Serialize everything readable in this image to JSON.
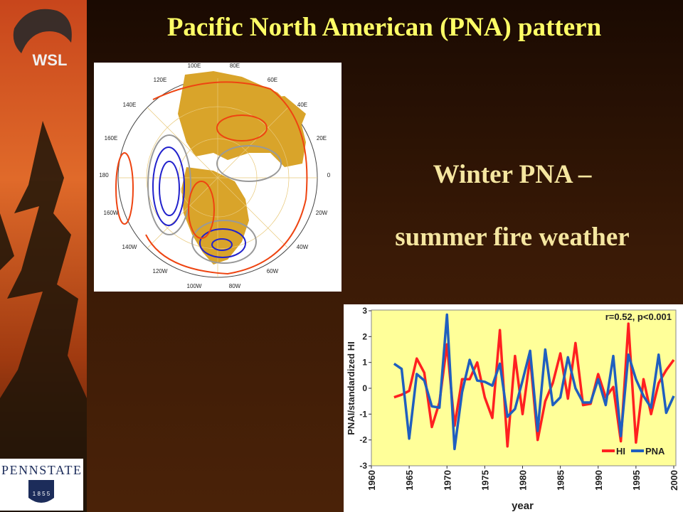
{
  "slide": {
    "title": "Pacific North American (PNA) pattern",
    "lines": [
      "Winter PNA –",
      "summer fire weather"
    ],
    "logo_top": "WSL",
    "logo_bottom": "PENNSTATE",
    "logo_year": "1 8 5 5"
  },
  "map": {
    "labels": [
      "100E",
      "80E",
      "120E",
      "60E",
      "140E",
      "40E",
      "160E",
      "20E",
      "180",
      "0",
      "160W",
      "20W",
      "140W",
      "40W",
      "120W",
      "60W",
      "100W",
      "80W"
    ]
  },
  "chart_data": {
    "type": "line",
    "annotation": "r=0.52, p<0.001",
    "xlabel": "year",
    "ylabel": "PNAI/standardized HI",
    "x": [
      1963,
      1964,
      1965,
      1966,
      1967,
      1968,
      1969,
      1970,
      1971,
      1972,
      1973,
      1974,
      1975,
      1976,
      1977,
      1978,
      1979,
      1980,
      1981,
      1982,
      1983,
      1984,
      1985,
      1986,
      1987,
      1988,
      1989,
      1990,
      1991,
      1992,
      1993,
      1994,
      1995,
      1996,
      1997,
      1998,
      1999,
      2000
    ],
    "series": [
      {
        "name": "HI",
        "color": "#ff2020",
        "values": [
          -0.35,
          -0.25,
          -0.1,
          1.15,
          0.6,
          -1.5,
          -0.55,
          1.7,
          -1.45,
          0.35,
          0.35,
          1.0,
          -0.35,
          -1.15,
          2.25,
          -2.25,
          1.25,
          -1.0,
          1.2,
          -2.0,
          -0.5,
          0.2,
          1.35,
          -0.4,
          1.75,
          -0.65,
          -0.6,
          0.55,
          -0.35,
          0.05,
          -2.05,
          2.5,
          -2.1,
          0.35,
          -1.0,
          0.2,
          0.7,
          1.1
        ]
      },
      {
        "name": "PNA",
        "color": "#1f5fbf",
        "values": [
          0.95,
          0.75,
          -1.95,
          0.55,
          0.3,
          -0.7,
          -0.75,
          2.85,
          -2.35,
          -0.15,
          1.1,
          0.3,
          0.25,
          0.1,
          0.95,
          -1.1,
          -0.8,
          0.3,
          1.45,
          -1.65,
          1.5,
          -0.65,
          -0.35,
          1.2,
          0.0,
          -0.55,
          -0.55,
          0.35,
          -0.65,
          1.25,
          -1.85,
          1.3,
          0.35,
          -0.3,
          -0.75,
          1.3,
          -0.95,
          -0.3
        ]
      }
    ],
    "xlim": [
      1960,
      2000
    ],
    "xticks": [
      1960,
      1965,
      1970,
      1975,
      1980,
      1985,
      1990,
      1995,
      2000
    ],
    "ylim": [
      -3,
      3
    ],
    "yticks": [
      -3,
      -2,
      -1,
      0,
      1,
      2,
      3
    ],
    "legend": "lower right"
  }
}
